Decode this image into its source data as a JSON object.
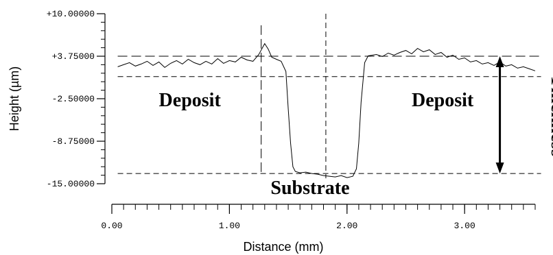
{
  "chart_data": {
    "type": "line",
    "title": "",
    "xlabel": "Distance (mm)",
    "ylabel": "Height (µm)",
    "xlim": [
      0,
      3.6
    ],
    "ylim": [
      -15,
      10
    ],
    "x_ticks": [
      {
        "value": 0,
        "label": "0.00"
      },
      {
        "value": 1,
        "label": "1.00"
      },
      {
        "value": 2,
        "label": "2.00"
      },
      {
        "value": 3,
        "label": "3.00"
      }
    ],
    "y_ticks": [
      {
        "value": 10,
        "label": "+10.00000"
      },
      {
        "value": 3.75,
        "label": "+3.75000"
      },
      {
        "value": -2.5,
        "label": "-2.50000"
      },
      {
        "value": -8.75,
        "label": "-8.75000"
      },
      {
        "value": -15,
        "label": "-15.00000"
      }
    ],
    "grid": false,
    "legend": "none",
    "series": [
      {
        "x": [
          0.05,
          0.1,
          0.15,
          0.2,
          0.25,
          0.3,
          0.35,
          0.4,
          0.45,
          0.5,
          0.55,
          0.6,
          0.65,
          0.7,
          0.75,
          0.8,
          0.85,
          0.9,
          0.95,
          1.0,
          1.05,
          1.1,
          1.15,
          1.2,
          1.25,
          1.3,
          1.33,
          1.36,
          1.4,
          1.44,
          1.48,
          1.5,
          1.52,
          1.54,
          1.56,
          1.6,
          1.65,
          1.7,
          1.75,
          1.8,
          1.85,
          1.9,
          1.95,
          2.0,
          2.05,
          2.08,
          2.1,
          2.12,
          2.15,
          2.18,
          2.25,
          2.3,
          2.35,
          2.4,
          2.45,
          2.5,
          2.55,
          2.6,
          2.65,
          2.7,
          2.75,
          2.8,
          2.85,
          2.9,
          2.95,
          3.0,
          3.05,
          3.1,
          3.15,
          3.2,
          3.25,
          3.3,
          3.35,
          3.4,
          3.45,
          3.5,
          3.55,
          3.6
        ],
        "y": [
          2.2,
          2.5,
          2.8,
          2.3,
          2.6,
          3.0,
          2.4,
          2.9,
          2.1,
          2.7,
          3.1,
          2.6,
          3.3,
          2.8,
          2.5,
          3.0,
          2.6,
          3.4,
          2.7,
          3.1,
          2.9,
          3.6,
          3.2,
          3.0,
          4.0,
          5.6,
          4.8,
          3.6,
          3.3,
          3.0,
          1.5,
          -4.0,
          -9.0,
          -12.5,
          -13.2,
          -13.4,
          -13.3,
          -13.5,
          -13.6,
          -13.8,
          -13.9,
          -14.0,
          -13.8,
          -14.1,
          -13.9,
          -12.8,
          -9.0,
          -3.0,
          2.8,
          3.8,
          4.0,
          3.7,
          4.2,
          3.9,
          4.3,
          4.6,
          4.1,
          4.9,
          4.4,
          4.7,
          4.0,
          4.3,
          3.6,
          3.9,
          3.3,
          3.5,
          2.9,
          3.1,
          2.6,
          2.8,
          2.4,
          2.9,
          2.3,
          2.5,
          2.0,
          2.2,
          1.9,
          1.6
        ]
      }
    ],
    "reference_lines": [
      {
        "orientation": "horizontal",
        "y": 3.75,
        "x_from": 0.05,
        "x_to": 3.65,
        "style": "long-dash"
      },
      {
        "orientation": "horizontal",
        "y": 0.75,
        "x_from": 0.05,
        "x_to": 3.65,
        "style": "dash"
      },
      {
        "orientation": "horizontal",
        "y": -13.5,
        "x_from": 0.05,
        "x_to": 3.65,
        "style": "dash"
      },
      {
        "orientation": "vertical",
        "x": 1.27,
        "y_from": 8.3,
        "y_to": -13.5,
        "style": "long-dash"
      },
      {
        "orientation": "vertical",
        "x": 1.82,
        "y_from": 10.0,
        "y_to": -14.2,
        "style": "dash"
      }
    ],
    "thickness_arrow": {
      "x": 3.3,
      "y_top": 3.75,
      "y_bottom": -13.5
    },
    "annotations": [
      {
        "text": "Deposit",
        "x": 0.4,
        "y": -3.6
      },
      {
        "text": "Deposit",
        "x": 2.55,
        "y": -3.6
      },
      {
        "text": "Substrate",
        "x": 1.35,
        "y": -16.5
      },
      {
        "text": "Thickness",
        "x": 3.6,
        "y": -5.0,
        "rotated": true
      }
    ]
  }
}
